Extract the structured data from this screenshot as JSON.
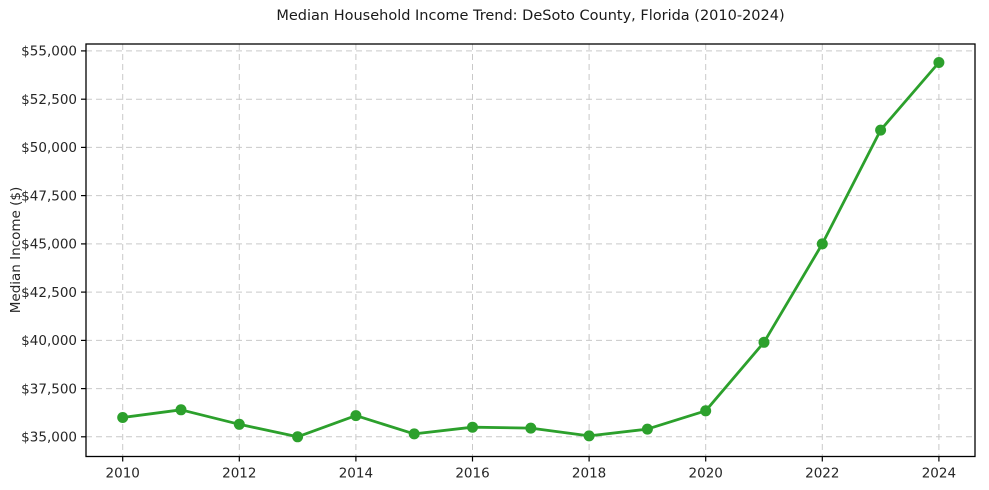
{
  "chart_data": {
    "type": "line",
    "title": "Median Household Income Trend: DeSoto County, Florida (2010-2024)",
    "xlabel": "",
    "ylabel": "Median Income ($)",
    "x": [
      2010,
      2011,
      2012,
      2013,
      2014,
      2015,
      2016,
      2017,
      2018,
      2019,
      2020,
      2021,
      2022,
      2023,
      2024
    ],
    "values": [
      36000,
      36400,
      35650,
      35000,
      36100,
      35150,
      35500,
      35450,
      35050,
      35400,
      36350,
      39900,
      45000,
      50900,
      54400
    ],
    "xticks": [
      2010,
      2012,
      2014,
      2016,
      2018,
      2020,
      2022,
      2024
    ],
    "xtick_labels": [
      "2010",
      "2012",
      "2014",
      "2016",
      "2018",
      "2020",
      "2022",
      "2024"
    ],
    "yticks": [
      35000,
      37500,
      40000,
      42500,
      45000,
      47500,
      50000,
      52500,
      55000
    ],
    "ytick_labels": [
      "$35,000",
      "$37,500",
      "$40,000",
      "$42,500",
      "$45,000",
      "$47,500",
      "$50,000",
      "$52,500",
      "$55,000"
    ],
    "xlim": [
      2009.37,
      2024.62
    ],
    "ylim": [
      33980,
      55360
    ],
    "grid": "dashed-both-axes",
    "legend": "none",
    "marker": "circle",
    "marker_radius": 5.5,
    "line_width": 2.8,
    "line_color": "#2ca02c",
    "grid_color": "#c9c9c9",
    "axis_color": "#000000",
    "text_color": "#262626",
    "background": "#ffffff"
  }
}
